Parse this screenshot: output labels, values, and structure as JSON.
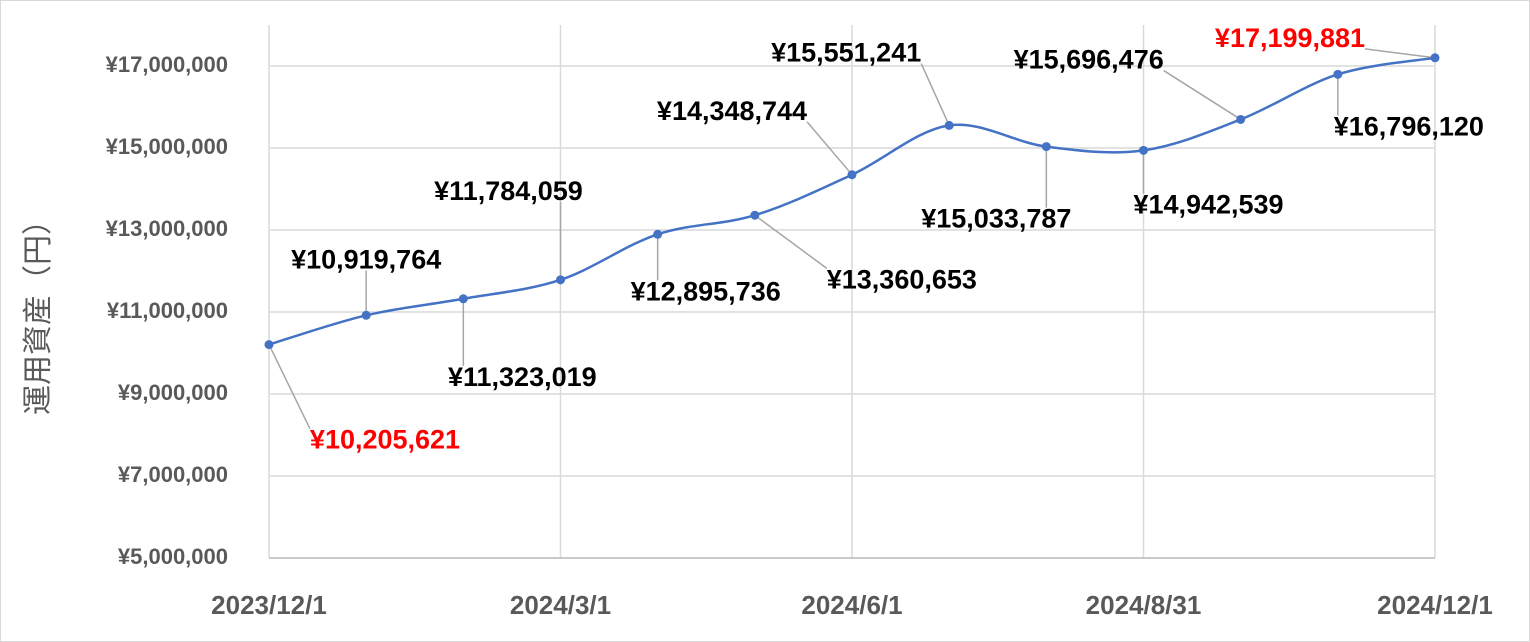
{
  "chart_data": {
    "type": "line",
    "y_label": "運用資産（円）",
    "categories": [
      "2023/12/1",
      null,
      null,
      "2024/3/1",
      null,
      null,
      "2024/6/1",
      null,
      null,
      "2024/8/31",
      null,
      null,
      "2024/12/1"
    ],
    "series": [
      {
        "name": "運用資産",
        "color": "#4472c4",
        "values": [
          10205621,
          10919764,
          11323019,
          11784059,
          12895736,
          13360653,
          14348744,
          15551241,
          15033787,
          14942539,
          15696476,
          16796120,
          17199881
        ],
        "value_labels": [
          "¥10,205,621",
          "¥10,919,764",
          "¥11,323,019",
          "¥11,784,059",
          "¥12,895,736",
          "¥13,360,653",
          "¥14,348,744",
          "¥15,551,241",
          "¥15,033,787",
          "¥14,942,539",
          "¥15,696,476",
          "¥16,796,120",
          "¥17,199,881"
        ],
        "value_label_colors": [
          "#ff0000",
          "#000000",
          "#000000",
          "#000000",
          "#000000",
          "#000000",
          "#000000",
          "#000000",
          "#000000",
          "#000000",
          "#000000",
          "#000000",
          "#ff0000"
        ]
      }
    ],
    "ylim": [
      5000000,
      18000000
    ],
    "yticks": [
      {
        "value": 5000000,
        "label": "¥5,000,000"
      },
      {
        "value": 7000000,
        "label": "¥7,000,000"
      },
      {
        "value": 9000000,
        "label": "¥9,000,000"
      },
      {
        "value": 11000000,
        "label": "¥11,000,000"
      },
      {
        "value": 13000000,
        "label": "¥13,000,000"
      },
      {
        "value": 15000000,
        "label": "¥15,000,000"
      },
      {
        "value": 17000000,
        "label": "¥17,000,000"
      }
    ],
    "grid": true
  }
}
